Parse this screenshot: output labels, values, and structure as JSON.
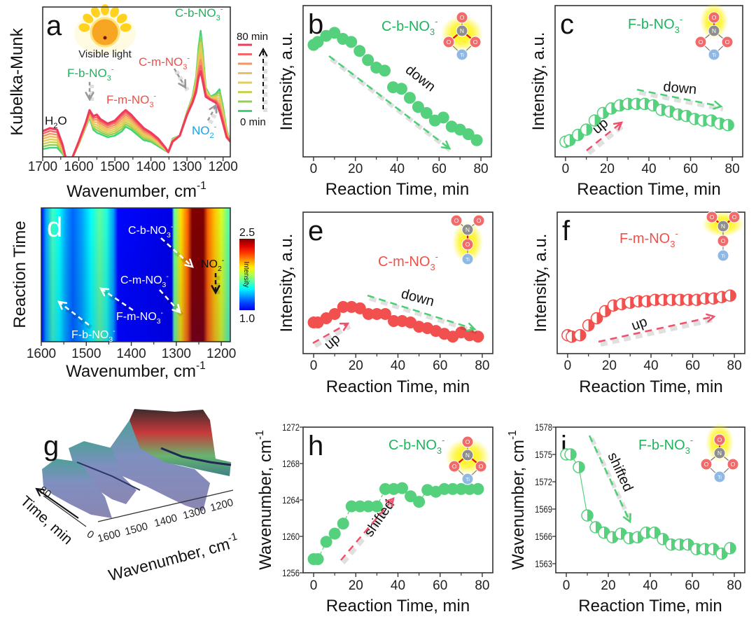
{
  "panels": {
    "a": {
      "letter": "a",
      "ylabel": [
        {
          "t": "Kubelka-Munk"
        }
      ],
      "xlabel": [
        {
          "t": "Wavenumber, cm"
        },
        {
          "t": "-1",
          "s": "sup"
        }
      ],
      "sun_label": "Visible light",
      "legend": {
        "top": "80 min",
        "bottom": "0 min",
        "colors": [
          "#f03c5a",
          "#f3666a",
          "#f2955e",
          "#efbd62",
          "#e6cc58",
          "#c9d252",
          "#96cd55",
          "#3cd478"
        ]
      },
      "annotations": {
        "h2o": [
          {
            "t": "H"
          },
          {
            "t": "2",
            "s": "sub"
          },
          {
            "t": "O"
          }
        ],
        "fb": [
          {
            "t": "F-b-NO"
          },
          {
            "t": "3",
            "s": "sub"
          },
          {
            "t": "-",
            "s": "sup"
          }
        ],
        "fm": [
          {
            "t": "F-m-NO"
          },
          {
            "t": "3",
            "s": "sub"
          },
          {
            "t": "-",
            "s": "sup"
          }
        ],
        "cm": [
          {
            "t": "C-m-NO"
          },
          {
            "t": "3",
            "s": "sub"
          },
          {
            "t": "-",
            "s": "sup"
          }
        ],
        "cb": [
          {
            "t": "C-b-NO"
          },
          {
            "t": "3",
            "s": "sub"
          },
          {
            "t": "-",
            "s": "sup"
          }
        ],
        "no2": [
          {
            "t": "NO"
          },
          {
            "t": "2",
            "s": "sub"
          },
          {
            "t": "-",
            "s": "sup"
          }
        ]
      }
    },
    "b": {
      "letter": "b",
      "ylabel": [
        {
          "t": "Intensity, a.u."
        }
      ],
      "xlabel": [
        {
          "t": "Reaction Time, min"
        }
      ],
      "species": [
        {
          "t": "C-b-NO"
        },
        {
          "t": "3",
          "s": "sub"
        },
        {
          "t": "-",
          "s": "sup"
        }
      ],
      "trend": "down"
    },
    "c": {
      "letter": "c",
      "ylabel": [
        {
          "t": "Intensity, a.u."
        }
      ],
      "xlabel": [
        {
          "t": "Reaction Time, min"
        }
      ],
      "species": [
        {
          "t": "F-b-NO"
        },
        {
          "t": "3",
          "s": "sub"
        },
        {
          "t": "-",
          "s": "sup"
        }
      ],
      "trend_up": "up",
      "trend_down": "down"
    },
    "d": {
      "letter": "d",
      "ylabel": [
        {
          "t": "Reaction Time"
        }
      ],
      "xlabel": [
        {
          "t": "Wavenumber, cm"
        },
        {
          "t": "-1",
          "s": "sup"
        }
      ],
      "colorbar_label": "Intensity",
      "colorbar_max": "2.5",
      "colorbar_min": "1.0",
      "annotations": {
        "cb": [
          {
            "t": "C-b-NO"
          },
          {
            "t": "3",
            "s": "sub"
          },
          {
            "t": "-",
            "s": "sup"
          }
        ],
        "no2": [
          {
            "t": "NO"
          },
          {
            "t": "2",
            "s": "sub"
          },
          {
            "t": "-",
            "s": "sup"
          }
        ],
        "cm": [
          {
            "t": "C-m-NO"
          },
          {
            "t": "3",
            "s": "sub"
          },
          {
            "t": "-",
            "s": "sup"
          }
        ],
        "fm": [
          {
            "t": "F-m-NO"
          },
          {
            "t": "3",
            "s": "sub"
          },
          {
            "t": "-",
            "s": "sup"
          }
        ],
        "fb": [
          {
            "t": "F-b-NO"
          },
          {
            "t": "3",
            "s": "sub"
          },
          {
            "t": "-",
            "s": "sup"
          }
        ]
      }
    },
    "e": {
      "letter": "e",
      "ylabel": [
        {
          "t": "Intensity, a.u."
        }
      ],
      "xlabel": [
        {
          "t": "Reaction Time, min"
        }
      ],
      "species": [
        {
          "t": "C-m-NO"
        },
        {
          "t": "3",
          "s": "sub"
        },
        {
          "t": "-",
          "s": "sup"
        }
      ],
      "trend_up": "up",
      "trend_down": "down"
    },
    "f": {
      "letter": "f",
      "ylabel": [
        {
          "t": "Intensity, a.u."
        }
      ],
      "xlabel": [
        {
          "t": "Reaction Time, min"
        }
      ],
      "species": [
        {
          "t": "F-m-NO"
        },
        {
          "t": "3",
          "s": "sub"
        },
        {
          "t": "-",
          "s": "sup"
        }
      ],
      "trend_up": "up"
    },
    "g": {
      "letter": "g",
      "xlabel": [
        {
          "t": "Wavenumber, cm"
        },
        {
          "t": "-1",
          "s": "sup"
        }
      ],
      "ylabel": [
        {
          "t": "Time, min"
        }
      ]
    },
    "h": {
      "letter": "h",
      "ylabel": [
        {
          "t": "Wavenumber, cm"
        },
        {
          "t": "-1",
          "s": "sup"
        }
      ],
      "xlabel": [
        {
          "t": "Reaction Time, min"
        }
      ],
      "species": [
        {
          "t": "C-b-NO"
        },
        {
          "t": "3",
          "s": "sub"
        },
        {
          "t": "-",
          "s": "sup"
        }
      ],
      "trend": "shifted"
    },
    "i": {
      "letter": "i",
      "ylabel": [
        {
          "t": "Wavenumber, cm"
        },
        {
          "t": "-1",
          "s": "sup"
        }
      ],
      "xlabel": [
        {
          "t": "Reaction Time, min"
        }
      ],
      "species": [
        {
          "t": "F-b-NO"
        },
        {
          "t": "3",
          "s": "sub"
        },
        {
          "t": "-",
          "s": "sup"
        }
      ],
      "trend": "shifted"
    },
    "atoms": {
      "O": "O",
      "N": "N",
      "Ti": "Ti"
    }
  },
  "colors": {
    "green_points": "#55d07d",
    "red_points": "#f2504e",
    "green_label": "#1db45c",
    "red_label": "#f0504a",
    "blue_label": "#1aa3e8",
    "oxygen": "#f26b6b",
    "nitrogen": "#8e8e8e",
    "titanium": "#8fb8e4",
    "glow": "#fff200"
  },
  "chart_data": [
    {
      "type": "line",
      "panel": "a",
      "xlim": [
        1700,
        1180
      ],
      "xticks": [
        "1700",
        "1600",
        "1500",
        "1400",
        "1300",
        "1200"
      ],
      "legend": "right",
      "series": [
        {
          "name": "0 min",
          "x": [
            1700,
            1680,
            1660,
            1645,
            1635,
            1620,
            1600,
            1580,
            1570,
            1560,
            1550,
            1540,
            1520,
            1500,
            1480,
            1470,
            1455,
            1440,
            1420,
            1400,
            1380,
            1360,
            1352,
            1340,
            1320,
            1300,
            1285,
            1275,
            1268,
            1262,
            1256,
            1248,
            1235,
            1220,
            1210,
            1200,
            1190,
            1180
          ],
          "y": [
            0.07,
            0.08,
            0.08,
            0.04,
            0.0,
            0.0,
            0.1,
            0.22,
            0.28,
            0.2,
            0.18,
            0.17,
            0.15,
            0.16,
            0.19,
            0.22,
            0.2,
            0.17,
            0.13,
            0.12,
            0.09,
            0.06,
            0.05,
            0.14,
            0.16,
            0.32,
            0.42,
            0.55,
            0.75,
            0.86,
            0.72,
            0.48,
            0.42,
            0.44,
            0.47,
            0.35,
            0.2,
            0.12
          ]
        },
        {
          "name": "80 min",
          "x": [
            1700,
            1680,
            1660,
            1645,
            1635,
            1620,
            1600,
            1580,
            1570,
            1560,
            1550,
            1540,
            1520,
            1500,
            1480,
            1470,
            1455,
            1440,
            1420,
            1400,
            1380,
            1360,
            1352,
            1340,
            1320,
            1300,
            1285,
            1275,
            1268,
            1262,
            1256,
            1248,
            1235,
            1220,
            1210,
            1200,
            1190,
            1180
          ],
          "y": [
            0.19,
            0.21,
            0.2,
            0.1,
            0.0,
            0.0,
            0.12,
            0.25,
            0.33,
            0.29,
            0.3,
            0.27,
            0.24,
            0.26,
            0.31,
            0.33,
            0.3,
            0.26,
            0.21,
            0.18,
            0.14,
            0.08,
            0.05,
            0.12,
            0.16,
            0.3,
            0.38,
            0.45,
            0.55,
            0.59,
            0.52,
            0.42,
            0.4,
            0.38,
            0.33,
            0.24,
            0.15,
            0.12
          ]
        }
      ]
    },
    {
      "type": "scatter",
      "panel": "b",
      "xlim": [
        -5,
        85
      ],
      "ylim": [
        0,
        1
      ],
      "xticks": [
        "0",
        "20",
        "40",
        "60",
        "80"
      ],
      "x": [
        0,
        2,
        6,
        10,
        14,
        18,
        22,
        26,
        30,
        34,
        38,
        42,
        46,
        50,
        54,
        58,
        62,
        66,
        70,
        74,
        78
      ],
      "y": [
        0.74,
        0.76,
        0.8,
        0.82,
        0.78,
        0.76,
        0.7,
        0.64,
        0.59,
        0.57,
        0.46,
        0.45,
        0.39,
        0.33,
        0.29,
        0.24,
        0.26,
        0.2,
        0.18,
        0.15,
        0.11
      ]
    },
    {
      "type": "scatter",
      "panel": "c",
      "xlim": [
        -5,
        85
      ],
      "ylim": [
        0,
        1
      ],
      "xticks": [
        "0",
        "20",
        "40",
        "60",
        "80"
      ],
      "x": [
        0,
        2,
        6,
        10,
        14,
        18,
        22,
        26,
        30,
        34,
        38,
        42,
        46,
        50,
        54,
        58,
        62,
        66,
        70,
        74,
        78
      ],
      "y": [
        0.1,
        0.11,
        0.145,
        0.18,
        0.24,
        0.29,
        0.32,
        0.34,
        0.35,
        0.35,
        0.35,
        0.34,
        0.31,
        0.3,
        0.28,
        0.27,
        0.25,
        0.24,
        0.24,
        0.22,
        0.21
      ]
    },
    {
      "type": "heatmap",
      "panel": "d",
      "xlim": [
        1600,
        1180
      ],
      "xticks": [
        "1600",
        "1500",
        "1400",
        "1300",
        "1200"
      ],
      "colorbar": {
        "min": 1.0,
        "max": 2.5,
        "colormap": "jet"
      },
      "profile": {
        "x": [
          1600,
          1590,
          1575,
          1560,
          1545,
          1530,
          1510,
          1490,
          1470,
          1455,
          1440,
          1430,
          1310,
          1305,
          1290,
          1275,
          1265,
          1240,
          1230,
          1215,
          1200,
          1185,
          1180
        ],
        "intensity": [
          1.0,
          1.3,
          1.55,
          1.45,
          1.3,
          1.2,
          1.3,
          1.45,
          1.6,
          1.5,
          1.3,
          1.05,
          1.0,
          1.6,
          1.9,
          2.1,
          2.5,
          2.5,
          2.1,
          1.95,
          1.8,
          1.6,
          1.55
        ]
      }
    },
    {
      "type": "scatter",
      "panel": "e",
      "xlim": [
        -5,
        85
      ],
      "ylim": [
        0,
        1
      ],
      "xticks": [
        "0",
        "20",
        "40",
        "60",
        "80"
      ],
      "x": [
        0,
        2,
        6,
        10,
        14,
        18,
        22,
        26,
        30,
        34,
        38,
        42,
        46,
        50,
        54,
        58,
        62,
        66,
        70,
        74,
        78
      ],
      "y": [
        0.22,
        0.22,
        0.25,
        0.28,
        0.33,
        0.33,
        0.32,
        0.28,
        0.28,
        0.28,
        0.23,
        0.23,
        0.22,
        0.19,
        0.18,
        0.16,
        0.14,
        0.12,
        0.15,
        0.13,
        0.12
      ]
    },
    {
      "type": "scatter",
      "panel": "f",
      "xlim": [
        -5,
        85
      ],
      "ylim": [
        0,
        1
      ],
      "xticks": [
        "0",
        "20",
        "40",
        "60",
        "80"
      ],
      "x": [
        0,
        2,
        6,
        10,
        14,
        18,
        22,
        26,
        30,
        34,
        38,
        42,
        46,
        50,
        54,
        58,
        62,
        66,
        70,
        74,
        78
      ],
      "y": [
        0.13,
        0.12,
        0.13,
        0.2,
        0.25,
        0.3,
        0.34,
        0.35,
        0.36,
        0.37,
        0.37,
        0.38,
        0.38,
        0.38,
        0.38,
        0.38,
        0.38,
        0.39,
        0.39,
        0.4,
        0.41
      ]
    },
    {
      "type": "surface",
      "panel": "g",
      "xticks": [
        "1600",
        "1500",
        "1400",
        "1300",
        "1200"
      ],
      "yticks": [
        "0",
        "80"
      ]
    },
    {
      "type": "scatter",
      "panel": "h",
      "xlim": [
        -5,
        85
      ],
      "ylim": [
        1256,
        1272
      ],
      "xticks": [
        "0",
        "20",
        "40",
        "60",
        "80"
      ],
      "yticks": [
        "1256",
        "1260",
        "1264",
        "1268",
        "1272"
      ],
      "x": [
        0,
        2,
        6,
        10,
        14,
        18,
        22,
        26,
        30,
        34,
        38,
        42,
        46,
        50,
        54,
        58,
        62,
        66,
        70,
        74,
        78
      ],
      "y": [
        1257.5,
        1257.5,
        1259.4,
        1260.3,
        1261.4,
        1263.3,
        1263.3,
        1263.3,
        1263.3,
        1265.2,
        1265.2,
        1265.3,
        1264.4,
        1263.8,
        1265.1,
        1264.9,
        1265.2,
        1265.2,
        1265.2,
        1265.2,
        1265.2
      ]
    },
    {
      "type": "scatter",
      "panel": "i",
      "xlim": [
        -5,
        85
      ],
      "ylim": [
        1562,
        1578
      ],
      "xticks": [
        "0",
        "20",
        "40",
        "60",
        "80"
      ],
      "yticks": [
        "1563",
        "1566",
        "1569",
        "1572",
        "1575",
        "1578"
      ],
      "x": [
        0,
        2,
        6,
        10,
        14,
        18,
        22,
        26,
        30,
        34,
        38,
        42,
        46,
        50,
        54,
        58,
        62,
        66,
        70,
        74,
        78
      ],
      "y": [
        1575,
        1575,
        1573.6,
        1568.3,
        1567,
        1566.4,
        1565.9,
        1566.3,
        1565.8,
        1565.9,
        1566.4,
        1566.4,
        1565.7,
        1565.1,
        1565.1,
        1565.1,
        1564.6,
        1564.6,
        1564.6,
        1564.1,
        1564.7
      ]
    }
  ]
}
